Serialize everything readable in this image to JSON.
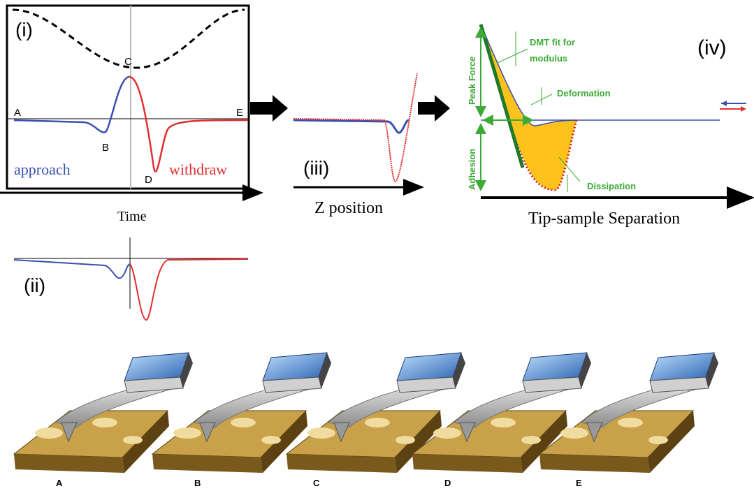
{
  "panel_i": {
    "label": "(i)",
    "points": {
      "A": "A",
      "B": "B",
      "C": "C",
      "D": "D",
      "E": "E"
    },
    "approach": "approach",
    "withdraw": "withdraw",
    "x_label": "Time"
  },
  "panel_ii": {
    "label": "(ii)"
  },
  "panel_iii": {
    "label": "(iii)",
    "x_label": "Z position"
  },
  "panel_iv": {
    "label": "(iv)",
    "dmt_fit": [
      "DMT fit for",
      "modulus"
    ],
    "peak_force": "Peak Force",
    "deformation": "Deformation",
    "adhesion": "Adhesion",
    "dissipation": "Dissipation",
    "x_label": "Tip-sample Separation"
  },
  "tip_sequence": {
    "labels": [
      "A",
      "B",
      "C",
      "D",
      "E"
    ]
  }
}
